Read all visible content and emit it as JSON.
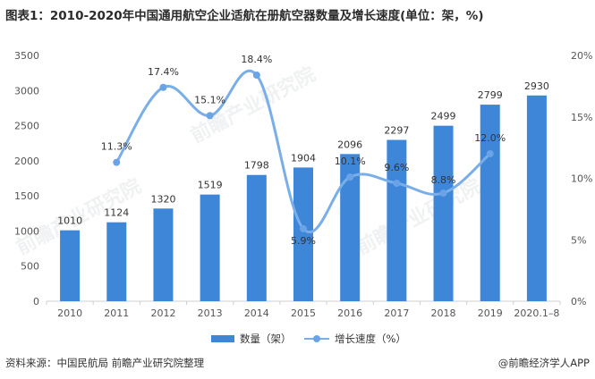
{
  "title": "图表1：2010-2020年中国通用航空企业适航在册航空器数量及增长速度(单位：架，%)",
  "source": "资料来源：中国民航局 前瞻产业研究院整理",
  "brand": "@前瞻经济学人APP",
  "watermark": "前瞻产业研究院",
  "colors": {
    "bar": "#3d86d8",
    "line": "#6aa3e6",
    "axis": "#cfcfcf"
  },
  "legend": {
    "bar_label": "数量（架）",
    "line_label": "增长速度（%）"
  },
  "chart_data": {
    "type": "bar",
    "categories": [
      "2010",
      "2011",
      "2012",
      "2013",
      "2014",
      "2015",
      "2016",
      "2017",
      "2018",
      "2019",
      "2020.1–8"
    ],
    "series": [
      {
        "name": "数量（架）",
        "type": "bar",
        "axis": "left",
        "values": [
          1010,
          1124,
          1320,
          1519,
          1798,
          1904,
          2096,
          2297,
          2499,
          2799,
          2930
        ]
      },
      {
        "name": "增长速度（%）",
        "type": "line",
        "axis": "right",
        "values": [
          null,
          11.3,
          17.4,
          15.1,
          18.4,
          5.9,
          10.1,
          9.6,
          8.8,
          12.0,
          null
        ],
        "labels": [
          "",
          "11.3%",
          "17.4%",
          "15.1%",
          "18.4%",
          "5.9%",
          "10.1%",
          "9.6%",
          "8.8%",
          "12.0%",
          ""
        ]
      }
    ],
    "y_left": {
      "min": 0,
      "max": 3500,
      "ticks": [
        "0",
        "500",
        "1000",
        "1500",
        "2000",
        "2500",
        "3000",
        "3500"
      ]
    },
    "y_right": {
      "min": 0,
      "max": 20,
      "ticks": [
        "0%",
        "5%",
        "10%",
        "15%",
        "20%"
      ]
    },
    "grid": false,
    "legend_position": "bottom"
  }
}
